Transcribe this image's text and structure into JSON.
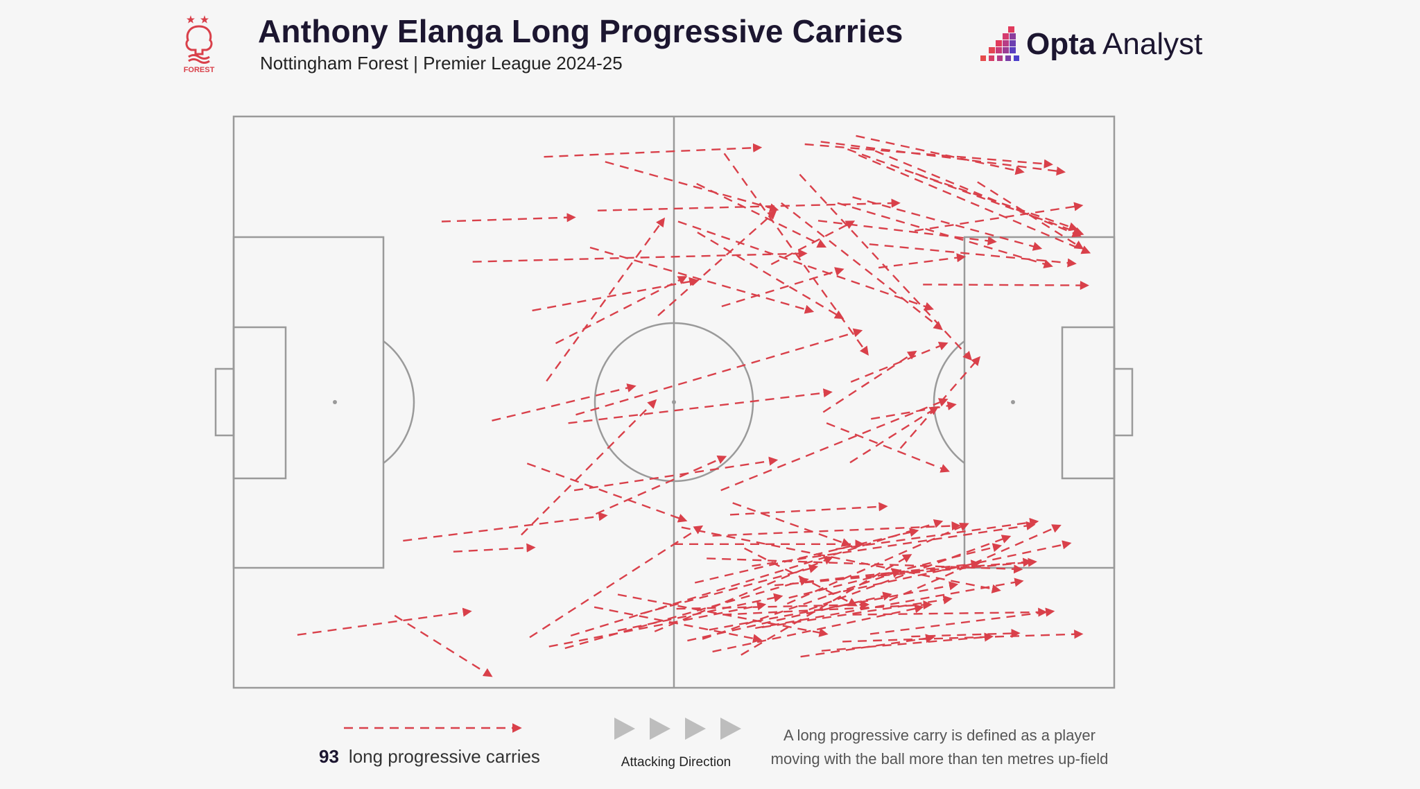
{
  "header": {
    "title": "Anthony Elanga Long Progressive Carries",
    "subtitle": "Nottingham Forest | Premier League 2024-25",
    "crest_label": "FOREST",
    "brand_bold": "Opta",
    "brand_light": " Analyst"
  },
  "legend": {
    "count": "93",
    "count_label": "long progressive carries",
    "direction_label": "Attacking Direction",
    "definition_line1": "A long progressive carry is defined as a player",
    "definition_line2": "moving with the ball more than ten metres up-field"
  },
  "colors": {
    "arrow": "#d9404a",
    "pitch_line": "#9a9a9a",
    "background": "#f6f6f6",
    "direction_arrows": "#bdbdbd"
  },
  "chart_data": {
    "type": "pitch-arrows",
    "title": "Anthony Elanga Long Progressive Carries",
    "pitch_length_m": 105,
    "pitch_width_m": 68,
    "direction": "left-to-right",
    "units": "metres from own goal line (x) and from top touchline (y)",
    "carries": [
      [
        37.0,
        4.8,
        62.8,
        3.7
      ],
      [
        44.3,
        5.4,
        64.8,
        11.1
      ],
      [
        24.8,
        12.5,
        40.6,
        12.0
      ],
      [
        28.5,
        17.3,
        68.2,
        16.3
      ],
      [
        35.6,
        23.1,
        55.2,
        19.5
      ],
      [
        38.4,
        27.0,
        53.9,
        19.1
      ],
      [
        42.5,
        15.6,
        69.0,
        23.2
      ],
      [
        50.6,
        23.7,
        64.6,
        11.3
      ],
      [
        58.2,
        22.6,
        72.6,
        18.2
      ],
      [
        55.3,
        13.8,
        72.6,
        24.0
      ],
      [
        37.3,
        31.5,
        51.3,
        12.2
      ],
      [
        40.8,
        35.5,
        74.8,
        25.5
      ],
      [
        55.2,
        8.0,
        70.5,
        15.5
      ],
      [
        58.5,
        4.4,
        75.6,
        28.3
      ],
      [
        43.4,
        11.2,
        79.3,
        10.3
      ],
      [
        67.5,
        6.9,
        87.9,
        28.9
      ],
      [
        53.0,
        12.5,
        83.3,
        22.9
      ],
      [
        69.7,
        12.4,
        90.8,
        14.9
      ],
      [
        74.2,
        2.3,
        94.1,
        6.6
      ],
      [
        73.2,
        3.9,
        101.2,
        14.0
      ],
      [
        74.5,
        4.6,
        102.0,
        16.2
      ],
      [
        68.1,
        3.3,
        97.5,
        5.7
      ],
      [
        70.0,
        3.0,
        99.0,
        6.6
      ],
      [
        76.5,
        4.1,
        100.9,
        14.2
      ],
      [
        81.3,
        6.8,
        100.5,
        13.4
      ],
      [
        72.0,
        10.3,
        97.5,
        17.8
      ],
      [
        75.8,
        15.2,
        100.3,
        17.5
      ],
      [
        76.9,
        18.0,
        87.1,
        16.7
      ],
      [
        82.2,
        20.0,
        101.8,
        20.1
      ],
      [
        81.2,
        13.6,
        101.1,
        10.6
      ],
      [
        88.7,
        7.8,
        101.2,
        15.7
      ],
      [
        73.8,
        9.6,
        96.2,
        15.7
      ],
      [
        65.3,
        10.3,
        84.4,
        25.3
      ],
      [
        64.1,
        17.6,
        73.9,
        12.5
      ],
      [
        39.9,
        36.5,
        71.2,
        32.8
      ],
      [
        30.8,
        36.2,
        47.8,
        32.1
      ],
      [
        35.0,
        41.3,
        53.9,
        48.1
      ],
      [
        43.2,
        47.3,
        58.6,
        40.5
      ],
      [
        40.6,
        44.5,
        64.7,
        40.9
      ],
      [
        34.3,
        49.8,
        50.3,
        33.8
      ],
      [
        73.6,
        31.6,
        85.0,
        27.0
      ],
      [
        76.0,
        36.0,
        86.0,
        34.3
      ],
      [
        79.5,
        39.5,
        88.9,
        28.7
      ],
      [
        70.7,
        36.5,
        85.2,
        42.2
      ],
      [
        70.3,
        35.2,
        81.3,
        28.0
      ],
      [
        73.5,
        41.2,
        83.9,
        34.6
      ],
      [
        58.1,
        44.5,
        85.0,
        33.7
      ],
      [
        20.2,
        50.5,
        44.4,
        47.5
      ],
      [
        26.2,
        51.8,
        35.8,
        51.3
      ],
      [
        7.6,
        61.7,
        28.2,
        58.9
      ],
      [
        19.2,
        59.4,
        30.7,
        66.6
      ],
      [
        35.3,
        62.0,
        55.8,
        48.8
      ],
      [
        37.6,
        63.1,
        63.3,
        58.1
      ],
      [
        39.5,
        63.3,
        68.4,
        55.1
      ],
      [
        40.2,
        61.8,
        84.4,
        48.2
      ],
      [
        48.5,
        59.2,
        69.5,
        53.6
      ],
      [
        45.8,
        61.2,
        65.3,
        57.1
      ],
      [
        50.2,
        61.3,
        71.3,
        52.5
      ],
      [
        54.1,
        62.4,
        78.3,
        56.9
      ],
      [
        57.1,
        63.7,
        82.1,
        58.4
      ],
      [
        60.5,
        64.1,
        80.7,
        52.2
      ],
      [
        43.0,
        58.4,
        62.8,
        62.3
      ],
      [
        45.8,
        56.9,
        70.7,
        61.6
      ],
      [
        52.8,
        58.6,
        75.6,
        58.1
      ],
      [
        55.9,
        62.2,
        79.4,
        54.1
      ],
      [
        56.7,
        61.1,
        86.2,
        55.7
      ],
      [
        63.0,
        60.8,
        85.5,
        57.4
      ],
      [
        67.6,
        64.3,
        83.4,
        62.0
      ],
      [
        70.1,
        63.6,
        90.4,
        61.9
      ],
      [
        72.6,
        62.5,
        101.1,
        61.6
      ],
      [
        75.9,
        61.6,
        97.7,
        58.9
      ],
      [
        66.2,
        57.3,
        91.4,
        51.1
      ],
      [
        64.5,
        55.8,
        95.6,
        53.0
      ],
      [
        61.8,
        53.5,
        95.4,
        48.6
      ],
      [
        56.4,
        52.6,
        93.9,
        53.9
      ],
      [
        52.5,
        50.9,
        75.0,
        50.9
      ],
      [
        53.4,
        48.9,
        91.3,
        56.4
      ],
      [
        59.5,
        46.0,
        73.4,
        51.0
      ],
      [
        57.1,
        49.9,
        86.5,
        48.7
      ],
      [
        60.9,
        51.4,
        74.2,
        58.2
      ],
      [
        68.1,
        55.4,
        88.8,
        53.2
      ],
      [
        71.8,
        51.5,
        95.8,
        48.2
      ],
      [
        58.3,
        59.3,
        83.1,
        58.1
      ],
      [
        62.2,
        60.9,
        94.0,
        55.3
      ],
      [
        66.0,
        58.0,
        87.5,
        48.5
      ],
      [
        73.8,
        59.3,
        96.8,
        59.0
      ],
      [
        68.6,
        58.7,
        92.5,
        50.0
      ],
      [
        59.2,
        47.4,
        77.8,
        46.4
      ],
      [
        55.0,
        55.5,
        81.5,
        49.3
      ],
      [
        78.2,
        57.6,
        98.5,
        48.7
      ],
      [
        70.9,
        56.9,
        99.7,
        50.8
      ],
      [
        77.6,
        54.4,
        95.0,
        53.0
      ],
      [
        80.8,
        61.9,
        93.6,
        61.5
      ]
    ]
  }
}
